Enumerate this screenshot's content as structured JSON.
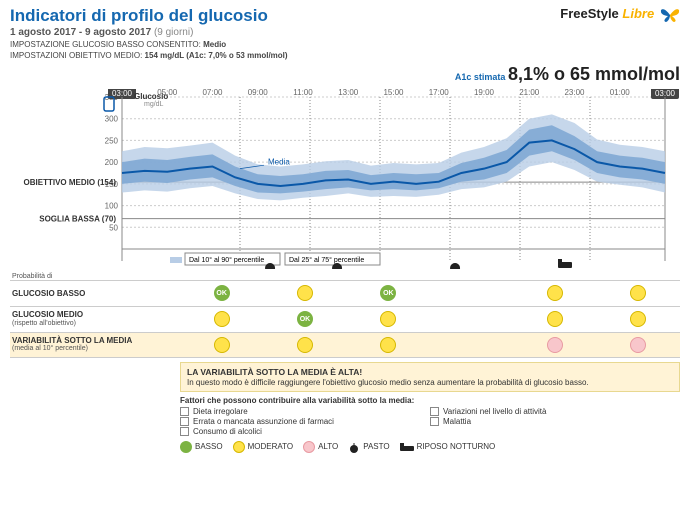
{
  "header": {
    "title": "Indicatori di profilo del glucosio",
    "range": "1 agosto 2017 - 9 agosto 2017",
    "duration": "(9 giorni)",
    "meta1_l": "IMPOSTAZIONE GLUCOSIO BASSO CONSENTITO:",
    "meta1_v": "Medio",
    "meta2_l": "IMPOSTAZIONI OBIETTIVO MEDIO:",
    "meta2_v": "154 mg/dL (A1c: 7,0% o 53 mmol/mol)"
  },
  "logo": {
    "fs": "FreeStyle",
    "lb": "Libre"
  },
  "a1c": {
    "label": "A1c stimata",
    "value": "8,1% o 65 mmol/mol"
  },
  "chart": {
    "y_unit": "mg/dL",
    "y_ticks": [
      0,
      50,
      100,
      150,
      200,
      250,
      300,
      350
    ],
    "x_ticks": [
      "03:00",
      "05:00",
      "07:00",
      "09:00",
      "11:00",
      "13:00",
      "15:00",
      "17:00",
      "19:00",
      "21:00",
      "23:00",
      "01:00",
      "03:00"
    ],
    "glucosio_label": "Glucosio",
    "obiettivo": {
      "label": "OBIETTIVO MEDIO (154)",
      "v": 154
    },
    "soglia": {
      "label": "SOGLIA BASSA (70)",
      "v": 70
    },
    "media_label": "Media",
    "legend1": "Dal 10° al 90° percentile",
    "legend2": "Dal 25° al 75° percentile",
    "colors": {
      "band_outer": "#b8cde6",
      "band_inner": "#7fa8d4",
      "median": "#0a58a8",
      "grid": "#cccccc",
      "axis": "#888888"
    },
    "median": [
      175,
      180,
      178,
      185,
      190,
      165,
      150,
      145,
      150,
      158,
      160,
      150,
      155,
      150,
      155,
      175,
      185,
      200,
      245,
      250,
      230,
      200,
      190,
      185,
      175
    ],
    "p25": [
      150,
      155,
      152,
      160,
      165,
      145,
      130,
      128,
      132,
      138,
      142,
      135,
      138,
      135,
      140,
      155,
      160,
      175,
      215,
      225,
      205,
      175,
      165,
      160,
      150
    ],
    "p75": [
      200,
      208,
      205,
      212,
      218,
      190,
      172,
      168,
      172,
      180,
      182,
      170,
      175,
      172,
      175,
      198,
      210,
      228,
      275,
      285,
      260,
      225,
      215,
      210,
      200
    ],
    "p10": [
      130,
      135,
      132,
      140,
      145,
      128,
      115,
      112,
      118,
      122,
      128,
      120,
      122,
      120,
      125,
      138,
      142,
      155,
      190,
      200,
      182,
      155,
      148,
      142,
      130
    ],
    "p90": [
      225,
      235,
      232,
      238,
      245,
      215,
      195,
      190,
      195,
      202,
      205,
      192,
      198,
      195,
      198,
      222,
      235,
      255,
      300,
      310,
      290,
      252,
      240,
      235,
      225
    ],
    "meals": [
      260,
      327,
      445
    ],
    "bed": 555
  },
  "table": {
    "prob_label": "Probabilità di",
    "rows": [
      {
        "t1": "GLUCOSIO BASSO",
        "cells": [
          "ok",
          "yel",
          "ok",
          "",
          "yel",
          "yel"
        ]
      },
      {
        "t1": "GLUCOSIO MEDIO",
        "t2": "(rispetto all'obiettivo)",
        "cells": [
          "yel",
          "ok",
          "yel",
          "",
          "yel",
          "yel"
        ]
      },
      {
        "t1": "VARIABILITÀ SOTTO LA MEDIA",
        "t2": "(media al 10° percentile)",
        "cells": [
          "yel",
          "yel",
          "yel",
          "",
          "pnk",
          "pnk"
        ]
      }
    ]
  },
  "warning": {
    "title": "LA VARIABILITÀ SOTTO LA MEDIA È ALTA!",
    "sub": "In questo modo è difficile raggiungere l'obiettivo glucosio medio senza aumentare la probabilità di glucosio basso."
  },
  "factors": {
    "title": "Fattori che possono contribuire alla variabilità sotto la media:",
    "col1": [
      "Dieta irregolare",
      "Errata o mancata assunzione di farmaci",
      "Consumo di alcolici"
    ],
    "col2": [
      "Variazioni nel livello di attività",
      "Malattia"
    ]
  },
  "legend2": {
    "items": [
      {
        "c": "g",
        "l": "BASSO"
      },
      {
        "c": "y",
        "l": "MODERATO"
      },
      {
        "c": "p",
        "l": "ALTO"
      }
    ],
    "meal": "PASTO",
    "bed": "RIPOSO NOTTURNO"
  }
}
